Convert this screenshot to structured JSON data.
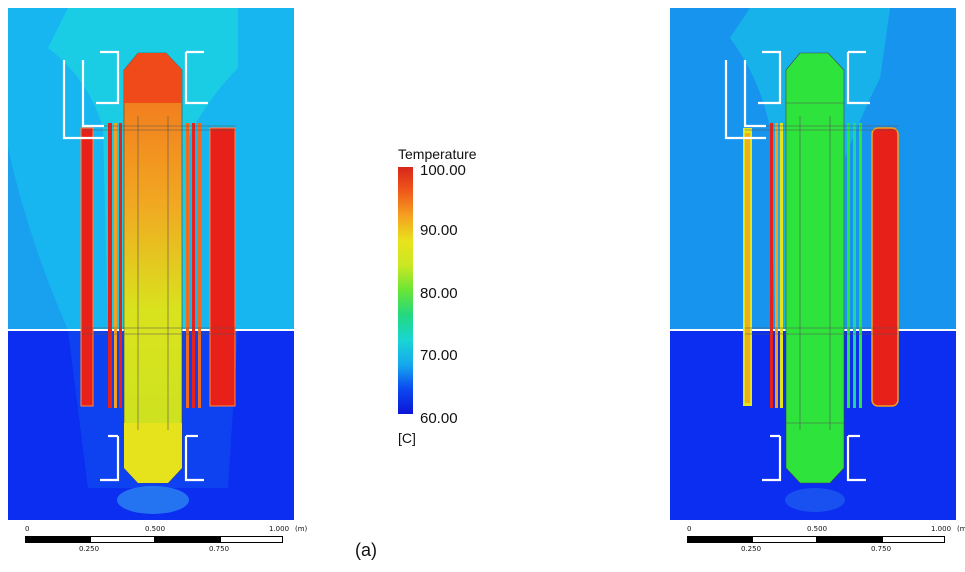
{
  "legend": {
    "title": "Temperature",
    "ticks": [
      "100.00",
      "90.00",
      "80.00",
      "70.00",
      "60.00"
    ],
    "unit": "[C]"
  },
  "scale_bar": {
    "top_labels": [
      "0",
      "0.500",
      "1.000"
    ],
    "bottom_labels": [
      "0.250",
      "0.750"
    ],
    "unit": "(m)"
  },
  "caption": "(a)",
  "colors": {
    "hot_red": "#e8201a",
    "orange": "#f2681d",
    "yellow": "#e5e61c",
    "green": "#2fe33d",
    "cyan": "#19d6e8",
    "light_blue": "#16b4f2",
    "blue": "#0b2bf0"
  }
}
